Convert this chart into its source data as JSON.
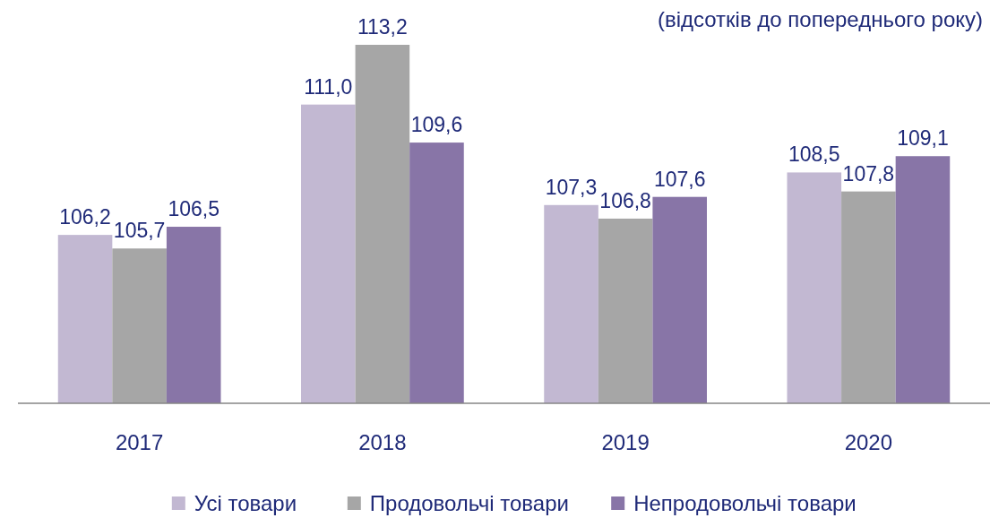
{
  "chart_data": {
    "type": "bar",
    "title": "(відсотків до попереднього року)",
    "categories": [
      "2017",
      "2018",
      "2019",
      "2020"
    ],
    "series": [
      {
        "name": "Усі товари",
        "color": "#c2b8d2",
        "values": [
          106.2,
          111.0,
          107.3,
          108.5
        ],
        "value_labels": [
          "106,2",
          "111,0",
          "107,3",
          "108,5"
        ]
      },
      {
        "name": "Продовольчі товари",
        "color": "#a6a6a6",
        "values": [
          105.7,
          113.2,
          106.8,
          107.8
        ],
        "value_labels": [
          "105,7",
          "113,2",
          "106,8",
          "107,8"
        ]
      },
      {
        "name": "Непродовольчі товари",
        "color": "#8875a7",
        "values": [
          106.5,
          109.6,
          107.6,
          109.1
        ],
        "value_labels": [
          "106,5",
          "109,6",
          "107,6",
          "109,1"
        ]
      }
    ],
    "ylim": [
      100,
      113.2
    ],
    "tick_labels": "x",
    "legend": "bottom"
  }
}
